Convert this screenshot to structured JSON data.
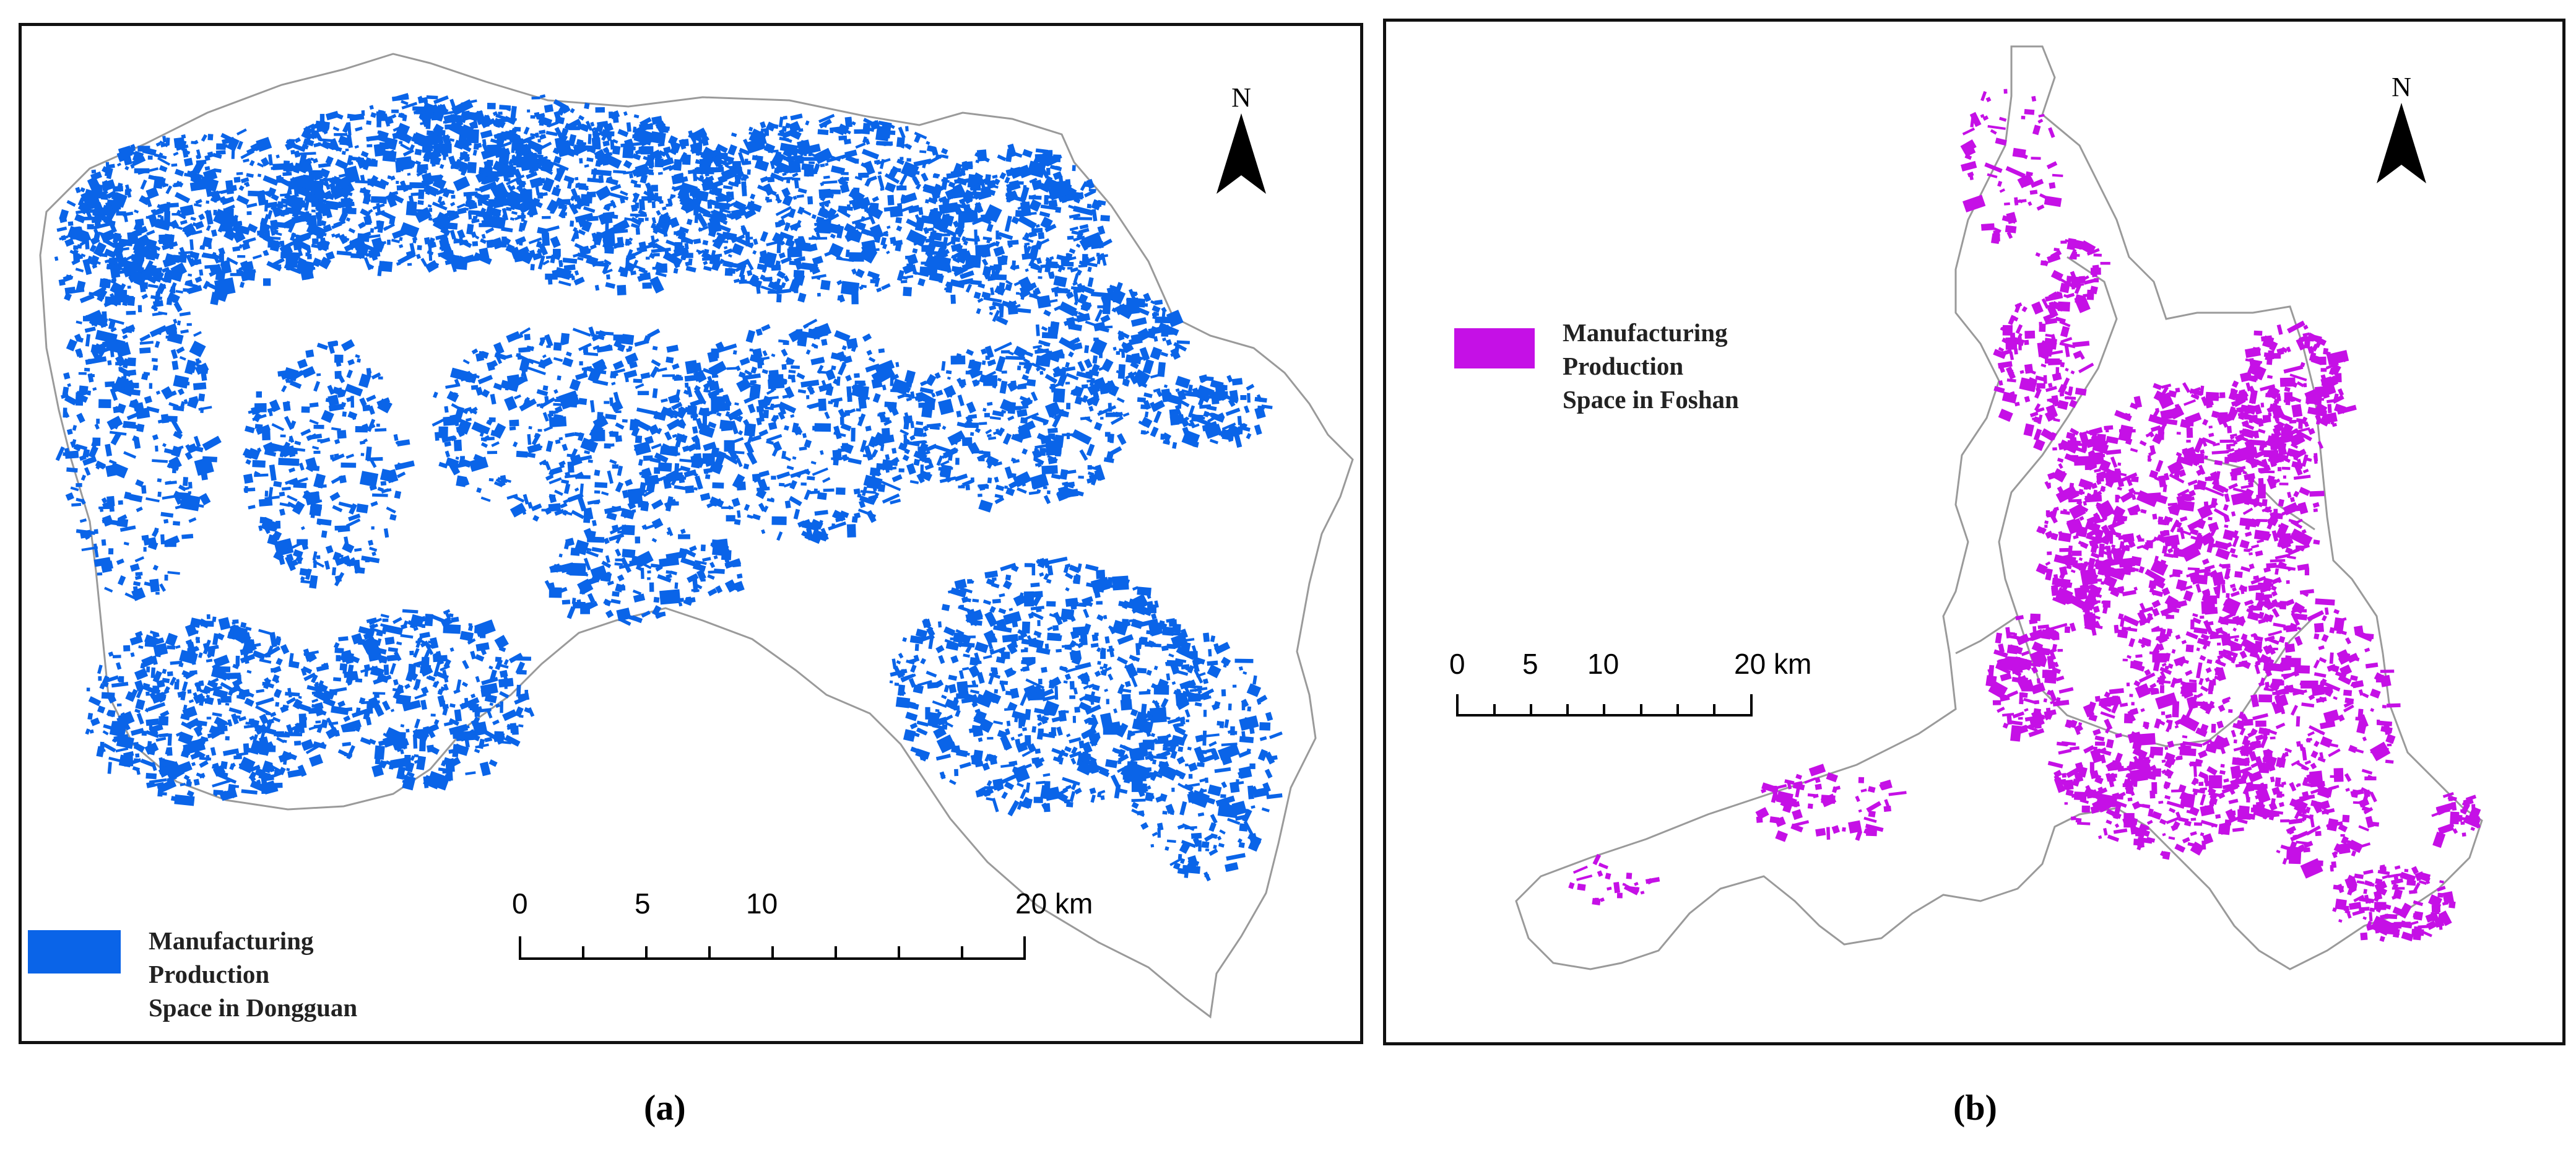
{
  "panels": [
    {
      "id": "a",
      "north_label": "N",
      "legend": {
        "color": "#0a64e8",
        "lines": [
          "Manufacturing",
          "Production",
          "Space in Dongguan"
        ]
      },
      "scale": {
        "ticks": [
          "0",
          "5",
          "10",
          "20 km"
        ]
      },
      "caption": "(a)"
    },
    {
      "id": "b",
      "north_label": "N",
      "legend": {
        "color": "#c510e6",
        "lines": [
          "Manufacturing",
          "Production",
          "Space in Foshan"
        ]
      },
      "scale": {
        "ticks": [
          "0",
          "5",
          "10",
          "20 km"
        ]
      },
      "caption": "(b)"
    }
  ],
  "colors": {
    "boundary": "#9a9a9a",
    "frame": "#111111"
  }
}
